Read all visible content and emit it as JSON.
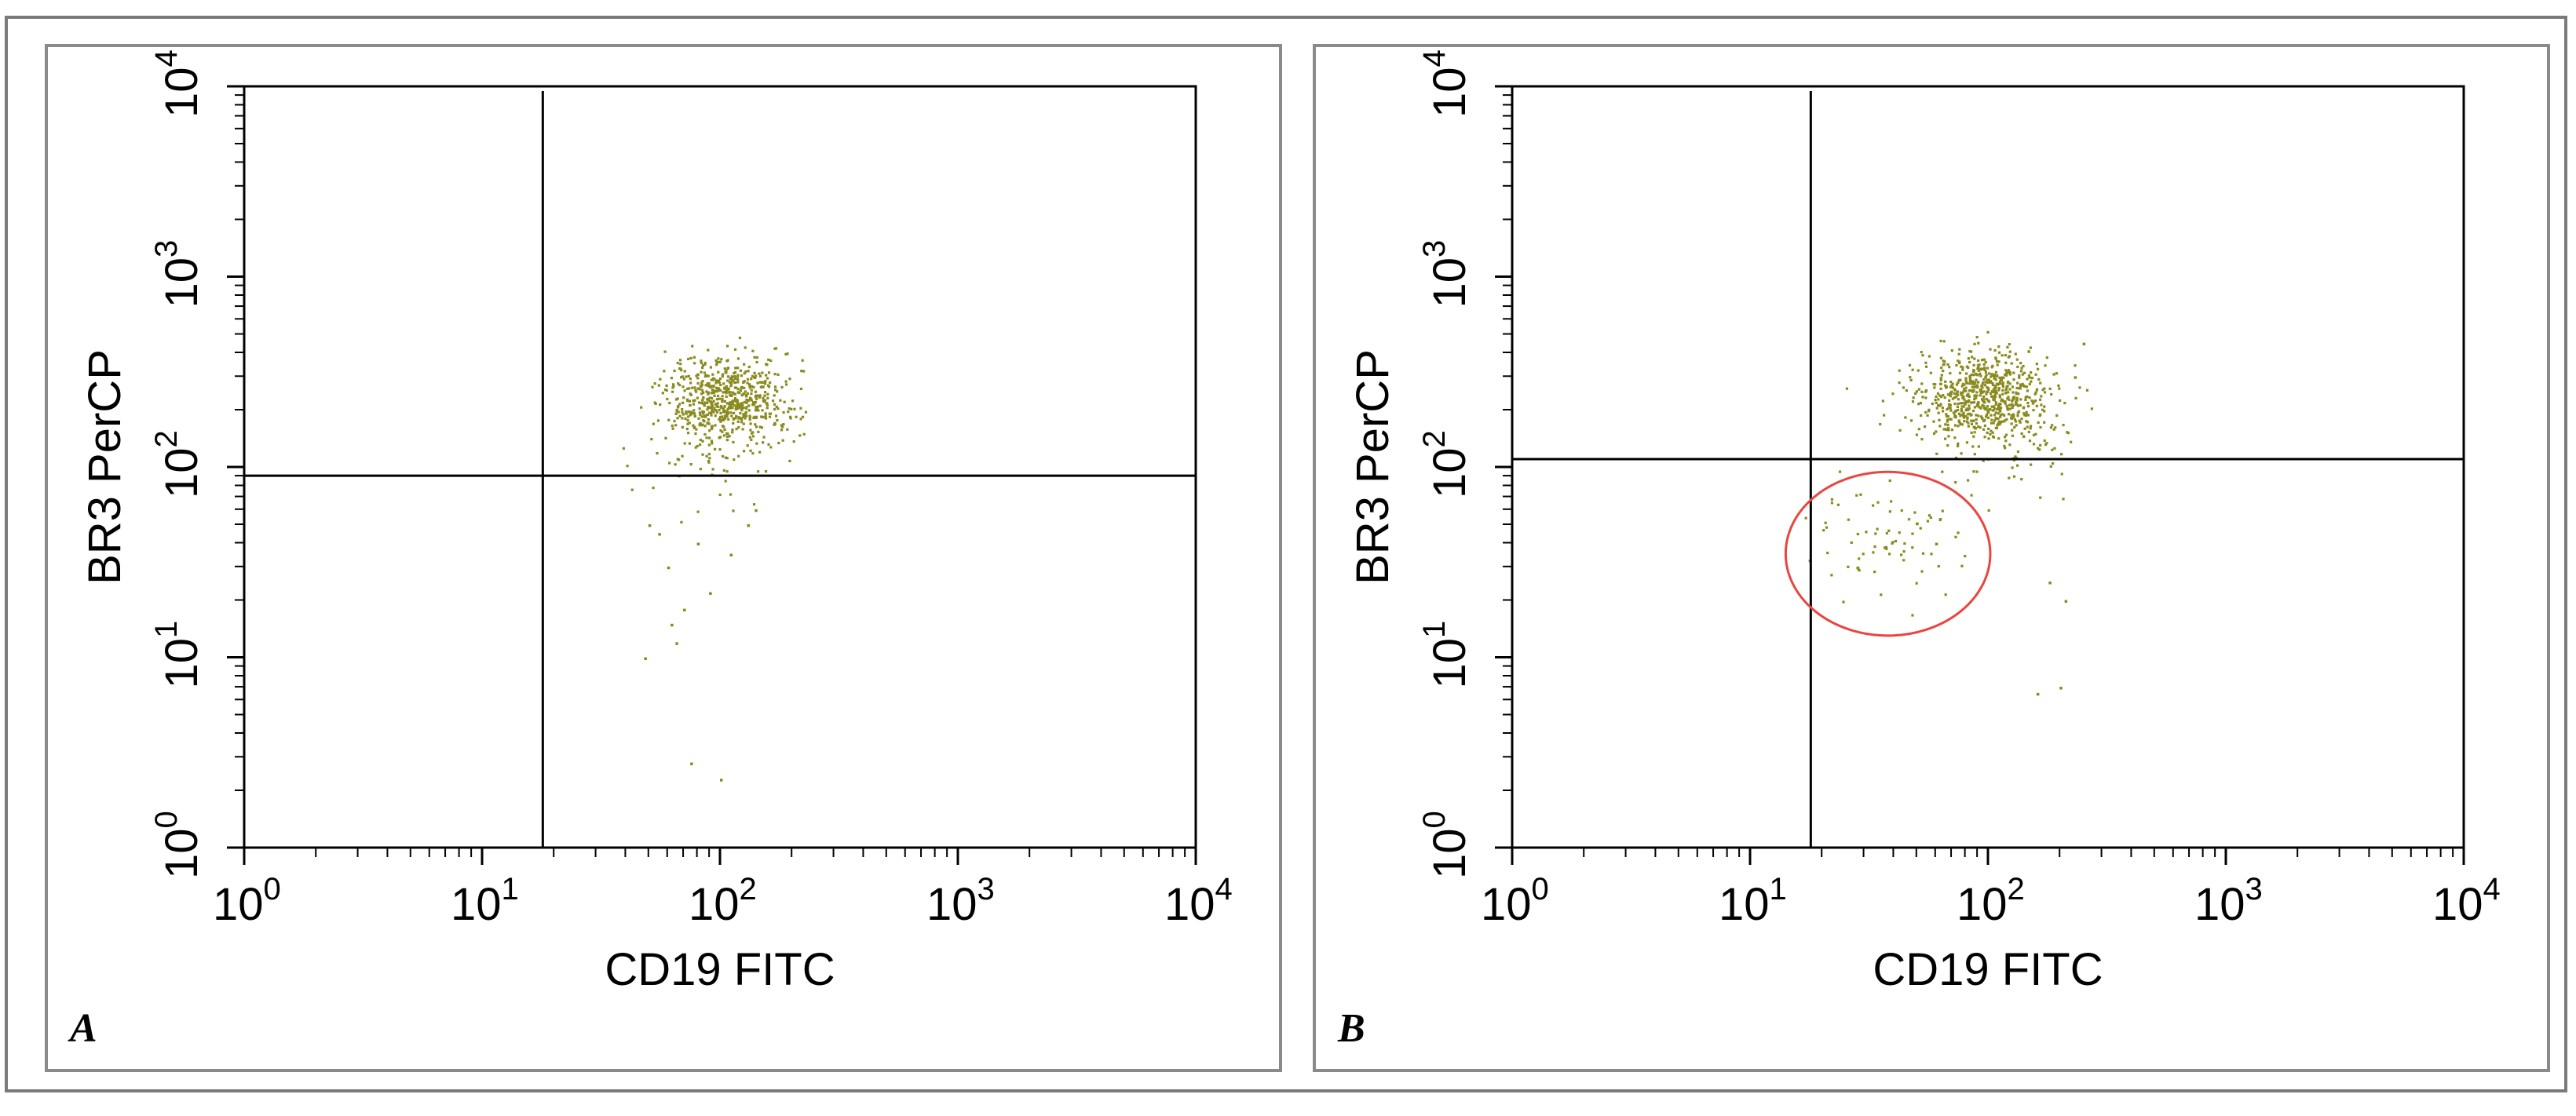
{
  "chart_data": [
    {
      "type": "scatter",
      "panel_label": "A",
      "xlabel": "CD19 FITC",
      "ylabel": "BR3 PerCP",
      "x_scale": "log",
      "y_scale": "log",
      "xlim": [
        1,
        10000
      ],
      "ylim": [
        1,
        10000
      ],
      "x_ticks": [
        {
          "base": "10",
          "exp": "0"
        },
        {
          "base": "10",
          "exp": "1"
        },
        {
          "base": "10",
          "exp": "2"
        },
        {
          "base": "10",
          "exp": "3"
        },
        {
          "base": "10",
          "exp": "4"
        }
      ],
      "y_ticks": [
        {
          "base": "10",
          "exp": "0"
        },
        {
          "base": "10",
          "exp": "1"
        },
        {
          "base": "10",
          "exp": "2"
        },
        {
          "base": "10",
          "exp": "3"
        },
        {
          "base": "10",
          "exp": "4"
        }
      ],
      "quadrant_gate": {
        "x": 18,
        "y": 90
      },
      "point_color": "#8a8a1e",
      "clusters": [
        {
          "center": [
            105,
            230
          ],
          "spread_log": [
            0.13,
            0.11
          ],
          "count": 650
        },
        {
          "center": [
            95,
            120
          ],
          "spread_log": [
            0.15,
            0.15
          ],
          "count": 70
        }
      ],
      "sparse_points": [
        [
          50,
          50
        ],
        [
          55,
          45
        ],
        [
          60,
          30
        ],
        [
          70,
          18
        ],
        [
          65,
          12
        ],
        [
          48,
          10
        ],
        [
          80,
          40
        ],
        [
          110,
          35
        ],
        [
          130,
          50
        ],
        [
          90,
          22
        ],
        [
          75,
          2.8
        ],
        [
          100,
          2.3
        ],
        [
          62,
          15
        ],
        [
          140,
          60
        ]
      ],
      "gate_circle": null
    },
    {
      "type": "scatter",
      "panel_label": "B",
      "xlabel": "CD19 FITC",
      "ylabel": "BR3 PerCP",
      "x_scale": "log",
      "y_scale": "log",
      "xlim": [
        1,
        10000
      ],
      "ylim": [
        1,
        10000
      ],
      "x_ticks": [
        {
          "base": "10",
          "exp": "0"
        },
        {
          "base": "10",
          "exp": "1"
        },
        {
          "base": "10",
          "exp": "2"
        },
        {
          "base": "10",
          "exp": "3"
        },
        {
          "base": "10",
          "exp": "4"
        }
      ],
      "y_ticks": [
        {
          "base": "10",
          "exp": "0"
        },
        {
          "base": "10",
          "exp": "1"
        },
        {
          "base": "10",
          "exp": "2"
        },
        {
          "base": "10",
          "exp": "3"
        },
        {
          "base": "10",
          "exp": "4"
        }
      ],
      "quadrant_gate": {
        "x": 18,
        "y": 110
      },
      "point_color": "#8a8a1e",
      "clusters": [
        {
          "center": [
            95,
            240
          ],
          "spread_log": [
            0.14,
            0.11
          ],
          "count": 700
        },
        {
          "center": [
            120,
            140
          ],
          "spread_log": [
            0.15,
            0.13
          ],
          "count": 80
        },
        {
          "center": [
            38,
            45
          ],
          "spread_log": [
            0.16,
            0.13
          ],
          "count": 75
        }
      ],
      "sparse_points": [
        [
          180,
          25
        ],
        [
          210,
          20
        ],
        [
          160,
          6.5
        ],
        [
          200,
          7
        ],
        [
          250,
          450
        ],
        [
          230,
          300
        ],
        [
          60,
          40
        ],
        [
          28,
          30
        ]
      ],
      "gate_circle": {
        "center": [
          38,
          35
        ],
        "radius_log": 0.43,
        "color": "#e8463f"
      }
    }
  ]
}
